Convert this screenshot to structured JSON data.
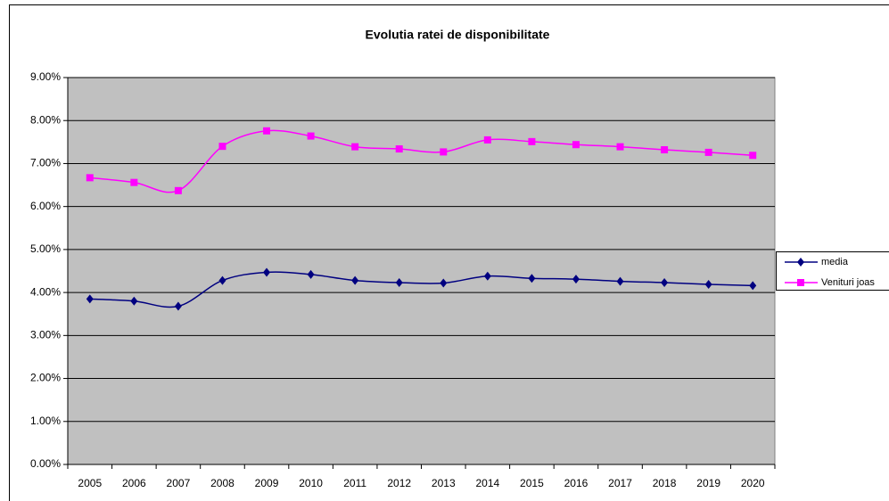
{
  "chart_data": {
    "type": "line",
    "title": "Evolutia ratei de disponibilitate",
    "categories": [
      "2005",
      "2006",
      "2007",
      "2008",
      "2009",
      "2010",
      "2011",
      "2012",
      "2013",
      "2014",
      "2015",
      "2016",
      "2017",
      "2018",
      "2019",
      "2020"
    ],
    "series": [
      {
        "name": "media",
        "color": "#000080",
        "marker": "diamond",
        "values": [
          3.85,
          3.8,
          3.68,
          4.28,
          4.47,
          4.42,
          4.28,
          4.23,
          4.22,
          4.38,
          4.33,
          4.31,
          4.26,
          4.23,
          4.19,
          4.16
        ]
      },
      {
        "name": "Venituri joas",
        "color": "#ff00ff",
        "marker": "square",
        "values": [
          6.67,
          6.56,
          6.37,
          7.4,
          7.76,
          7.64,
          7.39,
          7.34,
          7.27,
          7.55,
          7.51,
          7.44,
          7.39,
          7.32,
          7.26,
          7.19
        ]
      }
    ],
    "ylim": [
      0,
      9
    ],
    "yticks": [
      {
        "value": 0,
        "label": "0.00%"
      },
      {
        "value": 1,
        "label": "1.00%"
      },
      {
        "value": 2,
        "label": "2.00%"
      },
      {
        "value": 3,
        "label": "3.00%"
      },
      {
        "value": 4,
        "label": "4.00%"
      },
      {
        "value": 5,
        "label": "5.00%"
      },
      {
        "value": 6,
        "label": "6.00%"
      },
      {
        "value": 7,
        "label": "7.00%"
      },
      {
        "value": 8,
        "label": "8.00%"
      },
      {
        "value": 9,
        "label": "9.00%"
      }
    ],
    "grid": true,
    "plot_background": "#c0c0c0",
    "smooth": true,
    "legend": "right"
  }
}
